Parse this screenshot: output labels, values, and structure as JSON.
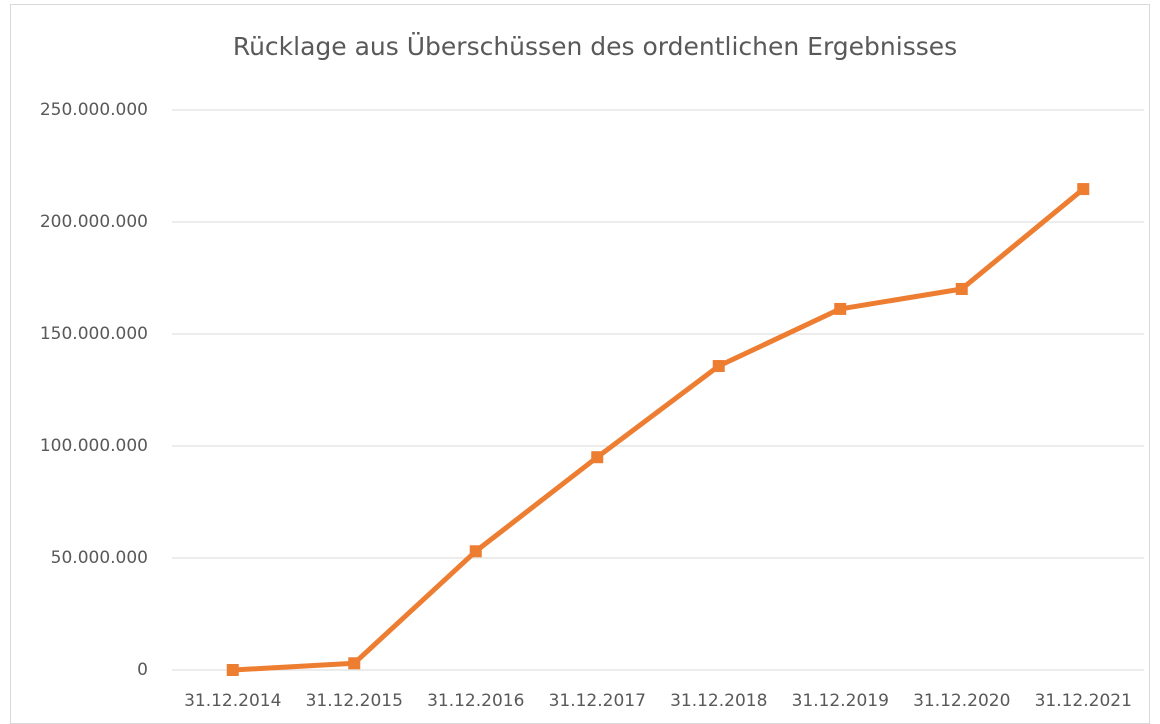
{
  "chart_data": {
    "type": "line",
    "title": "Rücklage aus Überschüssen des ordentlichen Ergebnisses",
    "categories": [
      "31.12.2014",
      "31.12.2015",
      "31.12.2016",
      "31.12.2017",
      "31.12.2018",
      "31.12.2019",
      "31.12.2020",
      "31.12.2021"
    ],
    "series": [
      {
        "color": "#ed7d31",
        "values": [
          0,
          3000000,
          53000000,
          95000000,
          135700000,
          161200000,
          170100000,
          214700000
        ]
      }
    ],
    "ylim": [
      0,
      250000000
    ],
    "yticks": [
      0,
      {
        "value": 50000000,
        "label": "50.000.000"
      },
      {
        "value": 100000000,
        "label": "100.000.000"
      },
      {
        "value": 150000000,
        "label": "150.000.000"
      },
      {
        "value": 200000000,
        "label": "200.000.000"
      },
      {
        "value": 250000000,
        "label": "250.000.000"
      }
    ],
    "grid": true
  }
}
